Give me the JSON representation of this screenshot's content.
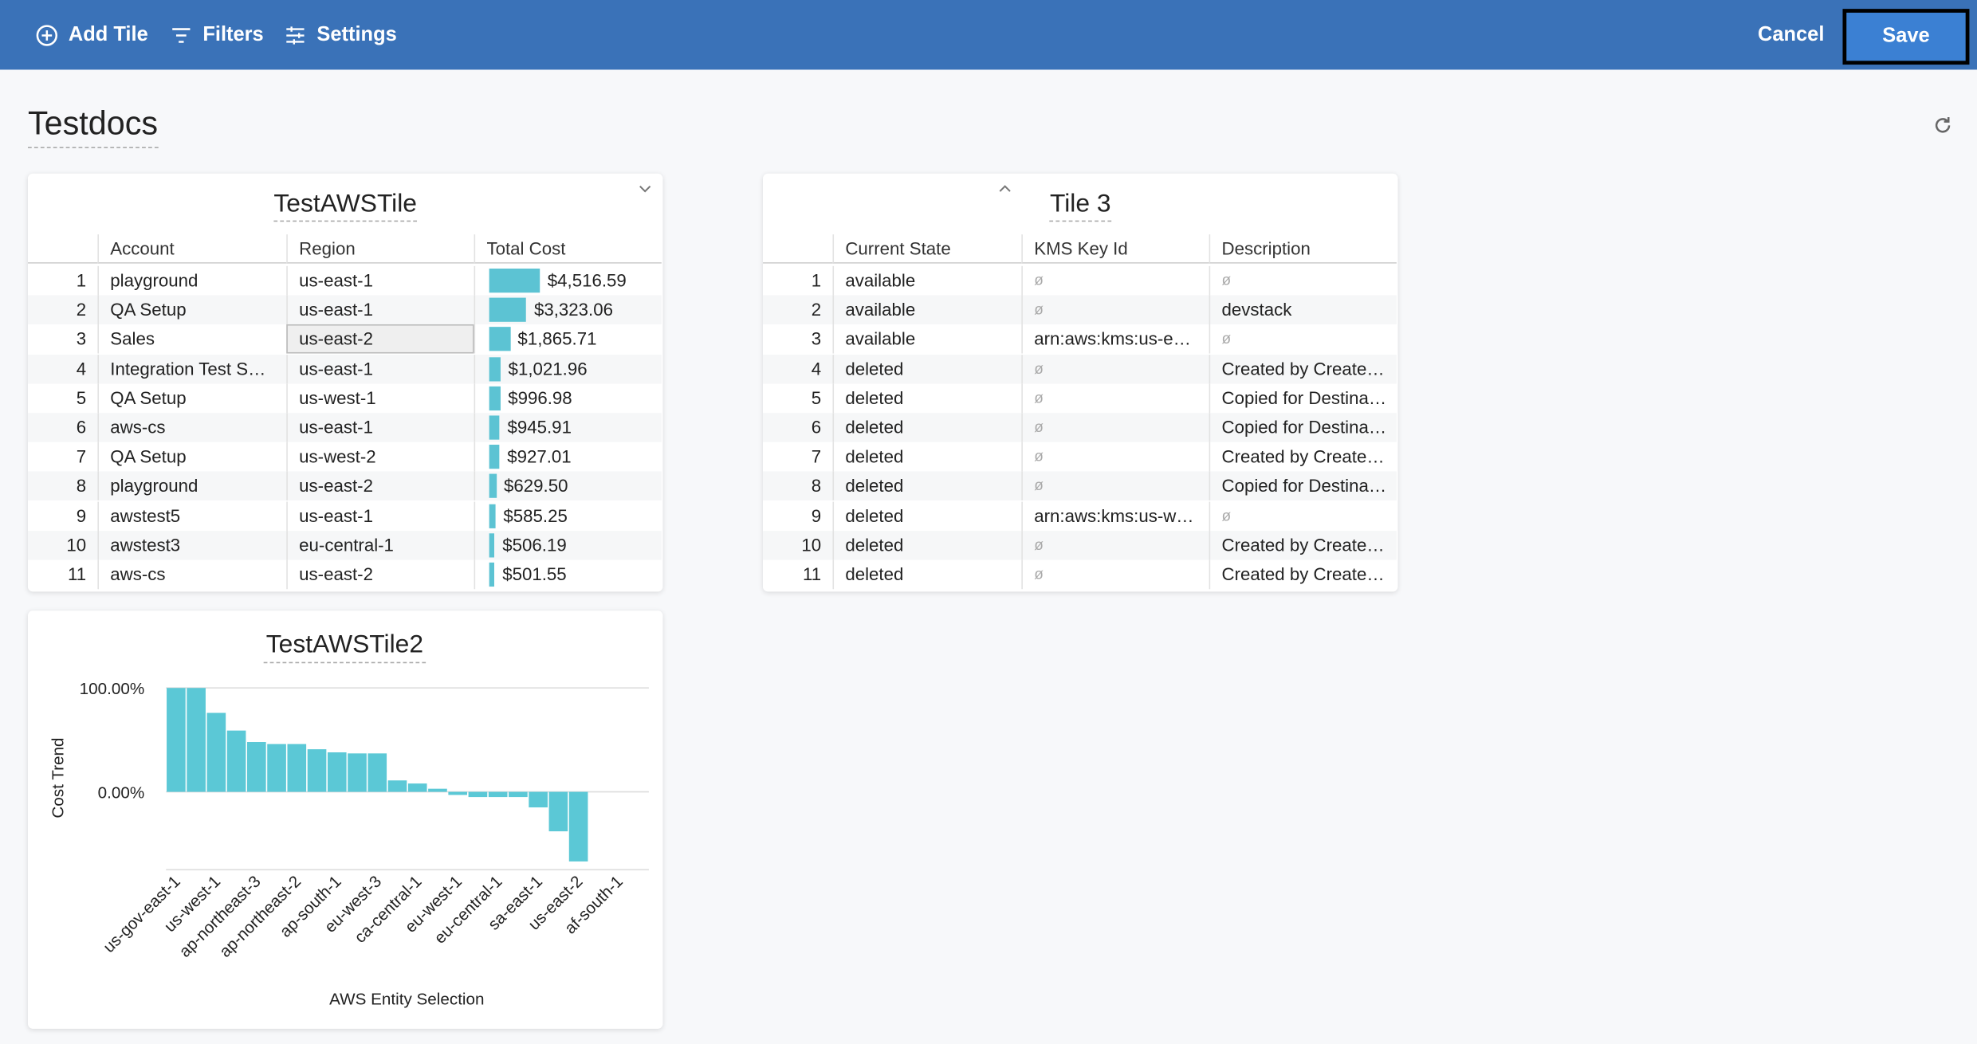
{
  "toolbar": {
    "add_tile": "Add Tile",
    "filters": "Filters",
    "settings": "Settings",
    "cancel": "Cancel",
    "save": "Save"
  },
  "dashboard": {
    "title": "Testdocs"
  },
  "tiles": [
    {
      "title": "TestAWSTile",
      "columns": [
        "Account",
        "Region",
        "Total Cost"
      ],
      "sort_column": 2,
      "sort_dir": "desc",
      "selected_cell": [
        2,
        2
      ],
      "bar_color": "#5cc3d3",
      "rows": [
        [
          1,
          "playground",
          "us-east-1",
          {
            "value": 4516.59,
            "label": "$4,516.59"
          }
        ],
        [
          2,
          "QA Setup",
          "us-east-1",
          {
            "value": 3323.06,
            "label": "$3,323.06"
          }
        ],
        [
          3,
          "Sales",
          "us-east-2",
          {
            "value": 1865.71,
            "label": "$1,865.71"
          }
        ],
        [
          4,
          "Integration Test S…",
          "us-east-1",
          {
            "value": 1021.96,
            "label": "$1,021.96"
          }
        ],
        [
          5,
          "QA Setup",
          "us-west-1",
          {
            "value": 996.98,
            "label": "$996.98"
          }
        ],
        [
          6,
          "aws-cs",
          "us-east-1",
          {
            "value": 945.91,
            "label": "$945.91"
          }
        ],
        [
          7,
          "QA Setup",
          "us-west-2",
          {
            "value": 927.01,
            "label": "$927.01"
          }
        ],
        [
          8,
          "playground",
          "us-east-2",
          {
            "value": 629.5,
            "label": "$629.50"
          }
        ],
        [
          9,
          "awstest5",
          "us-east-1",
          {
            "value": 585.25,
            "label": "$585.25"
          }
        ],
        [
          10,
          "awstest3",
          "eu-central-1",
          {
            "value": 506.19,
            "label": "$506.19"
          }
        ],
        [
          11,
          "aws-cs",
          "us-east-2",
          {
            "value": 501.55,
            "label": "$501.55"
          }
        ]
      ]
    },
    {
      "title": "Tile 3",
      "columns": [
        "Current State",
        "KMS Key Id",
        "Description"
      ],
      "sort_column": 0,
      "sort_dir": "asc",
      "rows": [
        [
          1,
          "available",
          "ø",
          "ø"
        ],
        [
          2,
          "available",
          "ø",
          "devstack"
        ],
        [
          3,
          "available",
          "arn:aws:kms:us-e…",
          "ø"
        ],
        [
          4,
          "deleted",
          "ø",
          "Created by Create…"
        ],
        [
          5,
          "deleted",
          "ø",
          "Copied for Destina…"
        ],
        [
          6,
          "deleted",
          "ø",
          "Copied for Destina…"
        ],
        [
          7,
          "deleted",
          "ø",
          "Created by Create…"
        ],
        [
          8,
          "deleted",
          "ø",
          "Copied for Destina…"
        ],
        [
          9,
          "deleted",
          "arn:aws:kms:us-w…",
          "ø"
        ],
        [
          10,
          "deleted",
          "ø",
          "Created by Create…"
        ],
        [
          11,
          "deleted",
          "ø",
          "Created by Create…"
        ]
      ]
    },
    {
      "chart_data": {
        "type": "bar",
        "title": "TestAWSTile2",
        "y_label": "Cost Trend",
        "x_label": "AWS Entity Selection",
        "color": "#5bc8d6",
        "categories": [
          "us-gov-east-1",
          null,
          "us-west-1",
          null,
          "ap-northeast-3",
          null,
          "ap-northeast-2",
          null,
          "ap-south-1",
          null,
          "eu-west-3",
          null,
          "ca-central-1",
          null,
          "eu-west-1",
          null,
          "eu-central-1",
          null,
          "sa-east-1",
          null,
          "us-east-2",
          null,
          "af-south-1",
          null
        ],
        "values": [
          100,
          100,
          76,
          59,
          48,
          46,
          46,
          41,
          38,
          37,
          37,
          11,
          8,
          3,
          -3,
          -5,
          -5,
          -5,
          -15,
          -38,
          -67,
          0,
          0,
          0
        ],
        "ylim": [
          -75,
          100
        ],
        "yticks": [
          {
            "value": 100,
            "label": "100.00%"
          },
          {
            "value": 0,
            "label": "0.00%"
          }
        ],
        "grid": true
      }
    }
  ]
}
